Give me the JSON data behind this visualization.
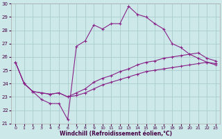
{
  "xlabel": "Windchill (Refroidissement éolien,°C)",
  "background_color": "#cce8e8",
  "grid_color": "#aacccc",
  "line_color": "#882288",
  "xlim": [
    -0.5,
    23.5
  ],
  "ylim": [
    21,
    30
  ],
  "yticks": [
    21,
    22,
    23,
    24,
    25,
    26,
    27,
    28,
    29,
    30
  ],
  "xticks": [
    0,
    1,
    2,
    3,
    4,
    5,
    6,
    7,
    8,
    9,
    10,
    11,
    12,
    13,
    14,
    15,
    16,
    17,
    18,
    19,
    20,
    21,
    22,
    23
  ],
  "hours": [
    0,
    1,
    2,
    3,
    4,
    5,
    6,
    7,
    8,
    9,
    10,
    11,
    12,
    13,
    14,
    15,
    16,
    17,
    18,
    19,
    20,
    21,
    22,
    23
  ],
  "line1": [
    25.6,
    24.0,
    23.4,
    22.8,
    22.5,
    22.5,
    21.3,
    26.8,
    27.2,
    28.4,
    28.1,
    28.5,
    28.5,
    29.8,
    29.2,
    29.0,
    28.5,
    28.1,
    27.0,
    26.7,
    26.2,
    25.9,
    25.6,
    25.4
  ],
  "line2": [
    25.6,
    24.0,
    23.4,
    23.3,
    23.2,
    23.3,
    23.0,
    23.3,
    23.6,
    24.1,
    24.4,
    24.6,
    24.9,
    25.1,
    25.4,
    25.6,
    25.7,
    25.9,
    26.0,
    26.1,
    26.2,
    26.3,
    25.9,
    25.7
  ],
  "line3": [
    25.6,
    24.0,
    23.4,
    23.3,
    23.2,
    23.3,
    23.0,
    23.1,
    23.3,
    23.6,
    23.9,
    24.1,
    24.3,
    24.5,
    24.7,
    24.9,
    25.0,
    25.1,
    25.2,
    25.3,
    25.4,
    25.5,
    25.6,
    25.5
  ]
}
